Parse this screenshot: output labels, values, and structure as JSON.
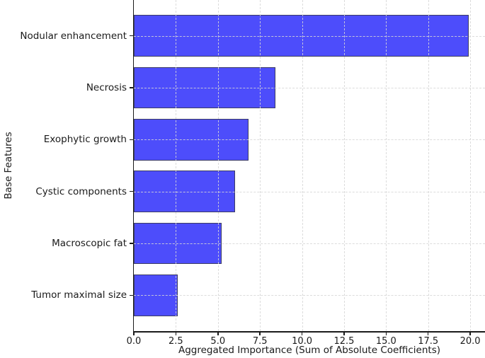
{
  "chart_data": {
    "type": "bar",
    "orientation": "horizontal",
    "title": "",
    "xlabel": "Aggregated Importance (Sum of Absolute Coefficients)",
    "ylabel": "Base Features",
    "categories": [
      "Nodular enhancement",
      "Necrosis",
      "Exophytic growth",
      "Cystic components",
      "Macroscopic fat",
      "Tumor maximal size"
    ],
    "values": [
      19.9,
      8.4,
      6.8,
      6.0,
      5.2,
      2.6
    ],
    "xlim": [
      0,
      20.88
    ],
    "xticks": [
      0.0,
      2.5,
      5.0,
      7.5,
      10.0,
      12.5,
      15.0,
      17.5,
      20.0
    ],
    "xtick_labels": [
      "0.0",
      "2.5",
      "5.0",
      "7.5",
      "10.0",
      "12.5",
      "15.0",
      "17.5",
      "20.0"
    ],
    "grid": "dashed",
    "grid_above_bars": true,
    "legend_position": "none",
    "colors": {
      "bar_fill": "#4d4dfb",
      "bar_edge": "#3c3c64",
      "grid": "#d7d7d7",
      "axis": "#1a1a1a",
      "text": "#1a1a1a",
      "background": "#ffffff"
    }
  }
}
